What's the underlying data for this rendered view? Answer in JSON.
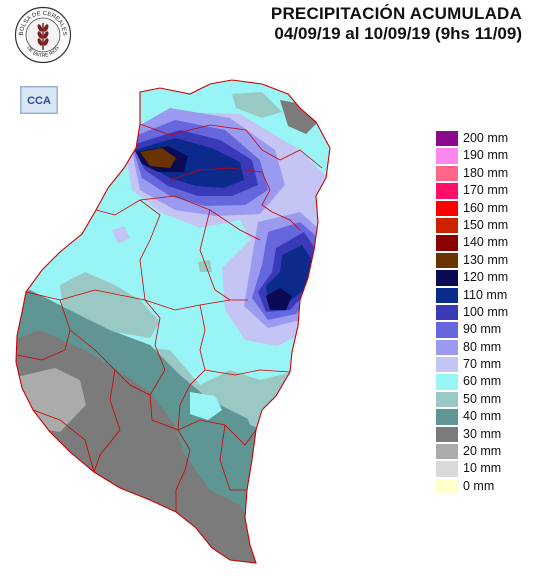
{
  "header": {
    "title_line1": "PRECIPITACIÓN ACUMULADA",
    "title_line2": "04/09/19 al 10/09/19 (9hs 11/09)"
  },
  "logos": {
    "seal_text_top": "BOLSA DE CEREALES",
    "seal_text_bottom": "DE ENTRE RIOS",
    "cca_text": "CCA"
  },
  "legend": {
    "items": [
      {
        "label": "200 mm",
        "color": "#8b0a8b"
      },
      {
        "label": "190 mm",
        "color": "#ff88ee"
      },
      {
        "label": "180 mm",
        "color": "#ff6688"
      },
      {
        "label": "170 mm",
        "color": "#ff0d66"
      },
      {
        "label": "160 mm",
        "color": "#ff0000"
      },
      {
        "label": "150 mm",
        "color": "#cc2200"
      },
      {
        "label": "140 mm",
        "color": "#8b0000"
      },
      {
        "label": "130 mm",
        "color": "#6b3300"
      },
      {
        "label": "120 mm",
        "color": "#0a0a55"
      },
      {
        "label": "110 mm",
        "color": "#0c2a8c"
      },
      {
        "label": "100 mm",
        "color": "#3a3ab8"
      },
      {
        "label": "90 mm",
        "color": "#6666dd"
      },
      {
        "label": "80 mm",
        "color": "#9a9af0"
      },
      {
        "label": "70 mm",
        "color": "#c4c4f5"
      },
      {
        "label": "60 mm",
        "color": "#99f5f5"
      },
      {
        "label": "50 mm",
        "color": "#9ac8c4"
      },
      {
        "label": "40 mm",
        "color": "#5f9694"
      },
      {
        "label": "30 mm",
        "color": "#7b7b7b"
      },
      {
        "label": "20 mm",
        "color": "#ababab"
      },
      {
        "label": "10 mm",
        "color": "#d9d9d9"
      },
      {
        "label": "0 mm",
        "color": "#ffffcc"
      }
    ]
  }
}
